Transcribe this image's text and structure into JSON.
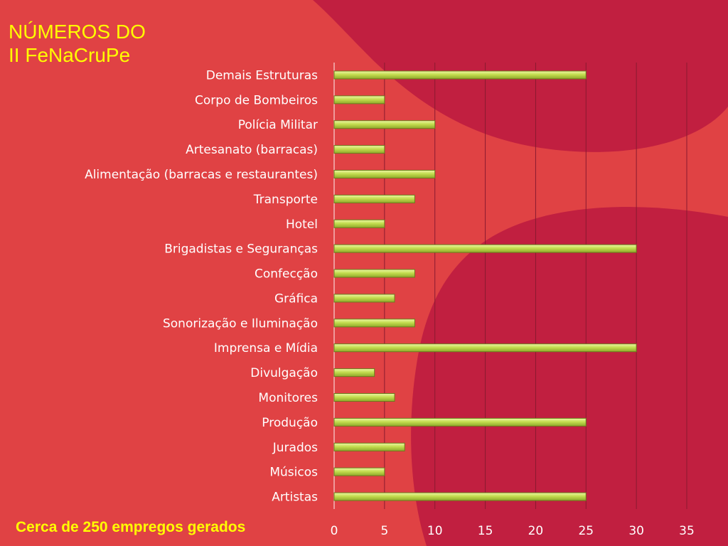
{
  "slide": {
    "title_line1": "NÚMEROS DO",
    "title_line2": "II FeNaCruPe",
    "footer": "Cerca de 250 empregos gerados"
  },
  "colors": {
    "background": "#e04244",
    "blob": "#c11f40",
    "bar": "#c3dd4f",
    "bar_outline": "#6b7d1c",
    "gridline": "#8a1a30",
    "text": "#ffffff",
    "title": "#ffff00"
  },
  "chart_data": {
    "type": "bar",
    "orientation": "horizontal",
    "categories": [
      "Demais Estruturas",
      "Corpo de Bombeiros",
      "Polícia Militar",
      "Artesanato (barracas)",
      "Alimentação (barracas e restaurantes)",
      "Transporte",
      "Hotel",
      "Brigadistas e Seguranças",
      "Confecção",
      "Gráfica",
      "Sonorização e Iluminação",
      "Imprensa e Mídia",
      "Divulgação",
      "Monitores",
      "Produção",
      "Jurados",
      "Músicos",
      "Artistas"
    ],
    "values": [
      25,
      5,
      10,
      5,
      10,
      8,
      5,
      30,
      8,
      6,
      8,
      30,
      4,
      6,
      25,
      7,
      5,
      25
    ],
    "xlim": [
      0,
      35
    ],
    "xticks": [
      "0",
      "5",
      "10",
      "15",
      "20",
      "25",
      "30",
      "35"
    ],
    "grid": true,
    "legend": false
  }
}
